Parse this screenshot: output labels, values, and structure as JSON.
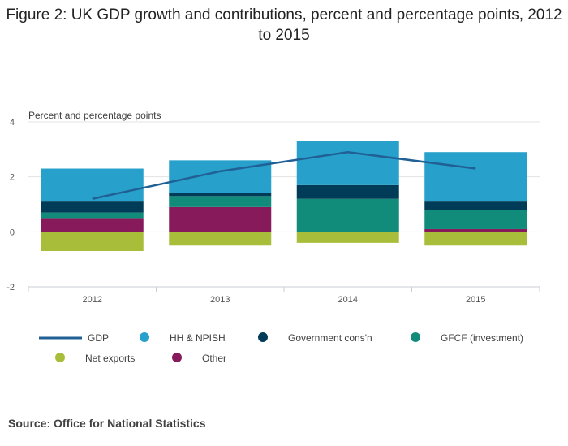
{
  "title": "Figure 2: UK GDP growth and contributions, percent and percentage points, 2012 to 2015",
  "source": "Source: Office for National Statistics",
  "chart_data": {
    "type": "bar",
    "stacked": true,
    "y_axis_title": "Percent and percentage points",
    "categories": [
      "2012",
      "2013",
      "2014",
      "2015"
    ],
    "ylim": [
      -2,
      4
    ],
    "yticks": [
      "-2",
      "0",
      "2",
      "4"
    ],
    "grid": true,
    "legend_position": "bottom",
    "series": [
      {
        "name": "HH & NPISH",
        "kind": "bar",
        "color": "#27a0cc",
        "values": [
          1.2,
          1.2,
          1.6,
          1.8
        ]
      },
      {
        "name": "Government cons'n",
        "kind": "bar",
        "color": "#003c57",
        "values": [
          0.4,
          0.1,
          0.5,
          0.3
        ]
      },
      {
        "name": "GFCF (investment)",
        "kind": "bar",
        "color": "#118c7b",
        "values": [
          0.2,
          0.4,
          1.2,
          0.7
        ]
      },
      {
        "name": "Net exports",
        "kind": "bar",
        "color": "#a8bd3a",
        "values": [
          -0.7,
          -0.5,
          -0.4,
          -0.5
        ]
      },
      {
        "name": "Other",
        "kind": "bar",
        "color": "#871a5b",
        "values": [
          0.5,
          0.9,
          0.0,
          0.1
        ]
      },
      {
        "name": "GDP",
        "kind": "line",
        "color": "#206095",
        "values": [
          1.2,
          2.2,
          2.9,
          2.3
        ]
      }
    ],
    "legend_order": [
      "GDP",
      "HH & NPISH",
      "Government cons'n",
      "GFCF (investment)",
      "Net exports",
      "Other"
    ]
  }
}
